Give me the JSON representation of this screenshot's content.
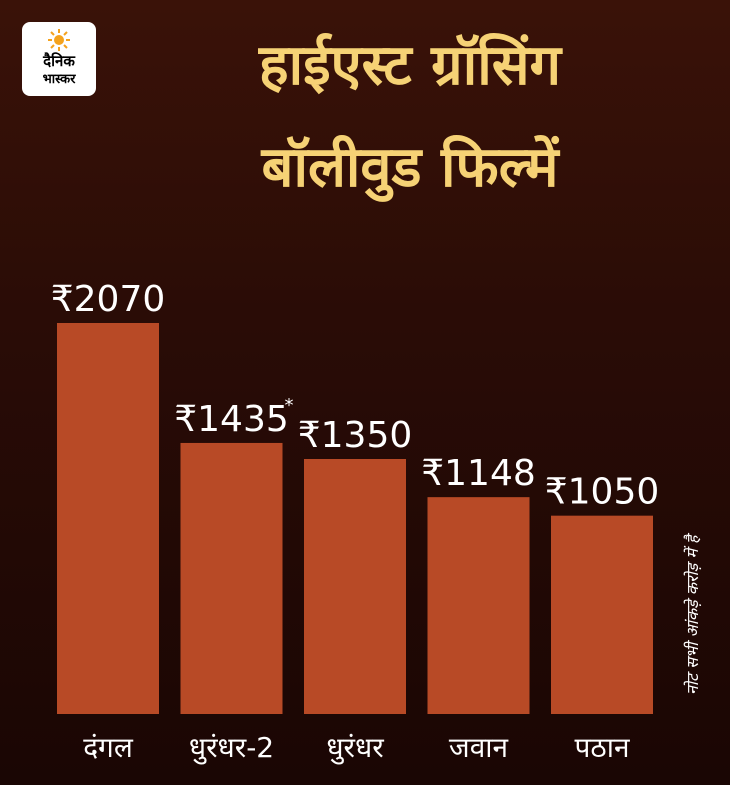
{
  "logo": {
    "line1": "दैनिक",
    "line2": "भास्कर",
    "sun_color": "#f4a21d"
  },
  "title": {
    "line1": "हाईएस्ट ग्रॉसिंग",
    "line2": "बॉलीवुड फिल्में"
  },
  "note": "नोट सभी आंकड़े करोड़ में है",
  "colors": {
    "bar": "#b84a26",
    "title": "#f6d275",
    "text": "#ffffff"
  },
  "chart_data": {
    "type": "bar",
    "title": "हाईएस्ट ग्रॉसिंग बॉलीवुड फिल्में",
    "categories": [
      "दंगल",
      "धुरंधर-2",
      "धुरंधर",
      "जवान",
      "पठान"
    ],
    "values": [
      2070,
      1435,
      1350,
      1148,
      1050
    ],
    "value_labels": [
      "₹2070",
      "₹1435",
      "₹1350",
      "₹1148",
      "₹1050"
    ],
    "value_markers": [
      "",
      "*",
      "",
      "",
      ""
    ],
    "ylim": [
      0,
      2070
    ],
    "grid": false,
    "legend": "none"
  }
}
